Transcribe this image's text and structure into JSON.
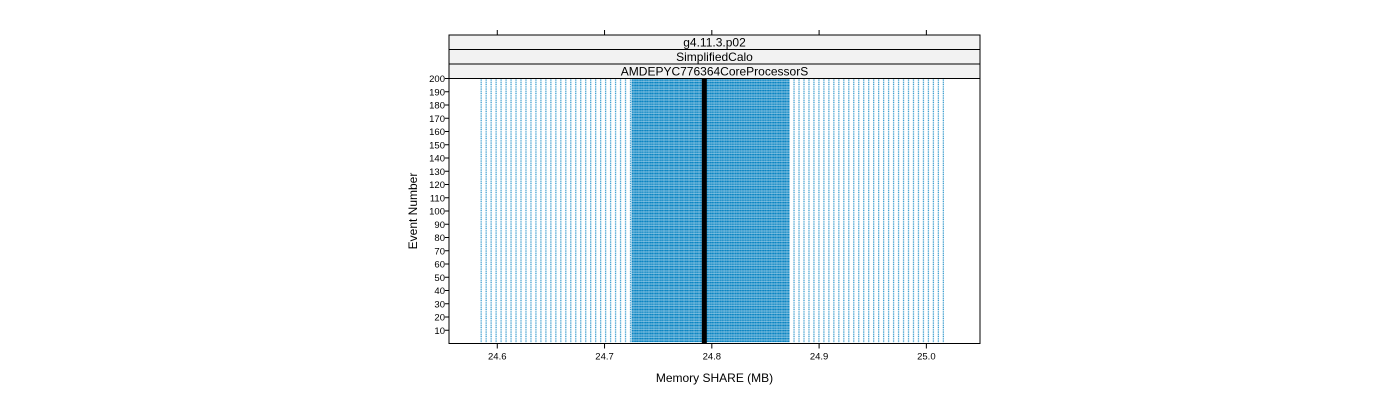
{
  "chart_data": {
    "type": "scatter",
    "title": "",
    "xlabel": "Memory SHARE (MB)",
    "ylabel": "Event Number",
    "xlim": [
      24.555,
      25.05
    ],
    "ylim": [
      0,
      200
    ],
    "x_ticks": [
      24.6,
      24.7,
      24.8,
      24.9,
      25.0
    ],
    "x_tick_labels": [
      "24.6",
      "24.7",
      "24.8",
      "24.9",
      "25.0"
    ],
    "y_ticks": [
      10,
      20,
      30,
      40,
      50,
      60,
      70,
      80,
      90,
      100,
      110,
      120,
      130,
      140,
      150,
      160,
      170,
      180,
      190,
      200
    ],
    "y_tick_labels": [
      "10",
      "20",
      "30",
      "40",
      "50",
      "60",
      "70",
      "80",
      "90",
      "100",
      "110",
      "120",
      "130",
      "140",
      "150",
      "160",
      "170",
      "180",
      "190",
      "200"
    ],
    "strips": [
      "g4.11.3.p02",
      "SimplifiedCalo",
      "AMDEPYC776364CoreProcessorS"
    ],
    "point_color": "#0080c0",
    "median_line_color": "#000000",
    "median_x": 24.793,
    "x_range_of_points": [
      24.585,
      25.02
    ],
    "dense_core_range": [
      24.726,
      24.872
    ],
    "sparse_column_step": 0.00464,
    "dense_column_step": 0.00155,
    "event_range": [
      1,
      200
    ],
    "grid": false,
    "legend": "none"
  }
}
